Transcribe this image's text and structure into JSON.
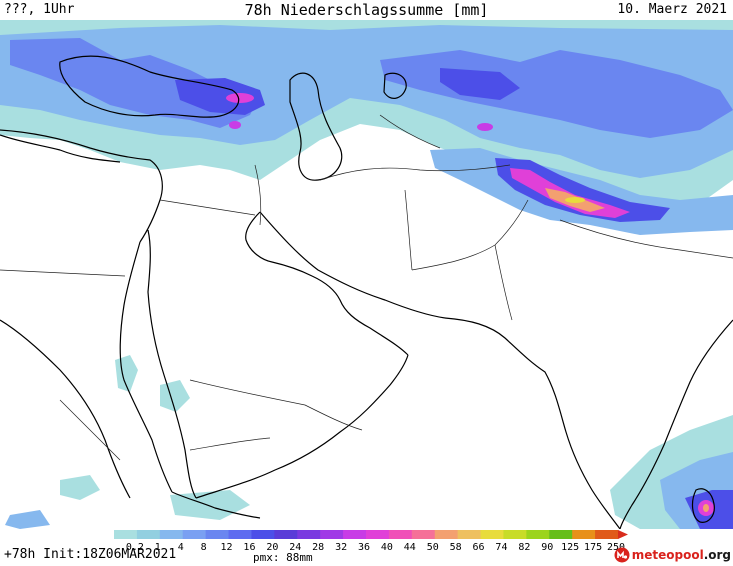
{
  "header": {
    "left": "???, 1Uhr",
    "title": "78h Niederschlagssumme [mm]",
    "right": "10. Maerz 2021"
  },
  "footer": {
    "run": "+78h Init:18Z06MAR2021",
    "pmx": "pmx: 88mm"
  },
  "brand": {
    "name": "meteopool",
    "tld": ".org",
    "icon": "meteopool-logo-icon"
  },
  "legend": {
    "labels": [
      "0.2",
      "1",
      "4",
      "8",
      "12",
      "16",
      "20",
      "24",
      "28",
      "32",
      "36",
      "40",
      "44",
      "50",
      "58",
      "66",
      "74",
      "82",
      "90",
      "125",
      "175",
      "250"
    ],
    "colors": [
      "#a9dfe0",
      "#92cfe0",
      "#86b8ee",
      "#7aa0f2",
      "#6a86f0",
      "#5e6cf0",
      "#4c4fe8",
      "#5a3cd8",
      "#7a3ae0",
      "#a03ae6",
      "#c83ce6",
      "#e040d8",
      "#f050b8",
      "#f57098",
      "#f3a070",
      "#eec060",
      "#e8dc3c",
      "#c8dc28",
      "#9cd41c",
      "#66be1a",
      "#e8901a",
      "#e05a1a"
    ],
    "arrow_color": "#d82c1c"
  },
  "map": {
    "land_color": "#ffffff",
    "border_color": "#000000",
    "precip_colors": {
      "light": "#a9dfe0",
      "moderate": "#86b8ee",
      "heavy": "#6a86f0",
      "very_heavy": "#4c4fe8",
      "extreme": "#e040d8",
      "peak": "#f3a070"
    }
  }
}
